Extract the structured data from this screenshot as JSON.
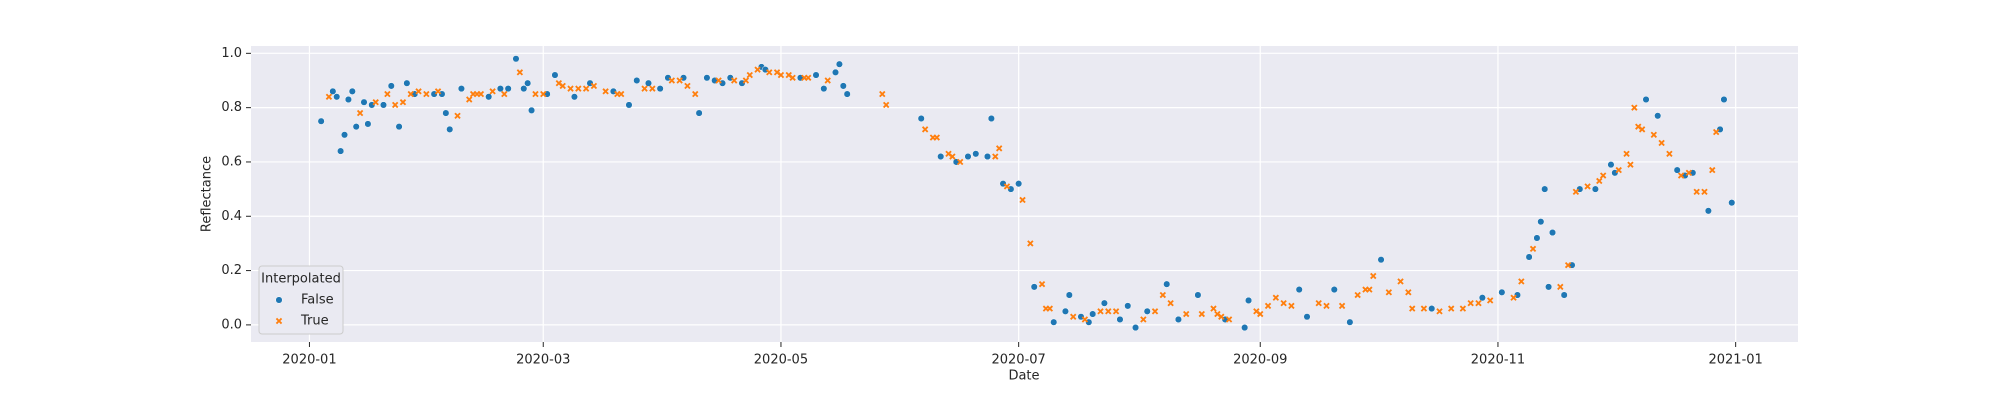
{
  "chart_data": {
    "type": "scatter",
    "x_label": "Date",
    "y_label": "Reflectance",
    "legend_title": "Interpolated",
    "legend_position": "lower left",
    "grid": true,
    "xlim": [
      "2019-12-17",
      "2021-01-17"
    ],
    "xticks": [
      {
        "value": "2020-01-01",
        "label": "2020-01"
      },
      {
        "value": "2020-03-01",
        "label": "2020-03"
      },
      {
        "value": "2020-05-01",
        "label": "2020-05"
      },
      {
        "value": "2020-07-01",
        "label": "2020-07"
      },
      {
        "value": "2020-09-01",
        "label": "2020-09"
      },
      {
        "value": "2020-11-01",
        "label": "2020-11"
      },
      {
        "value": "2021-01-01",
        "label": "2021-01"
      }
    ],
    "ylim": [
      -0.063,
      1.027
    ],
    "yticks": [
      {
        "value": 0,
        "label": "0.0"
      },
      {
        "value": 0.2,
        "label": "0.2"
      },
      {
        "value": 0.4,
        "label": "0.4"
      },
      {
        "value": 0.6,
        "label": "0.6"
      },
      {
        "value": 0.8,
        "label": "0.8"
      },
      {
        "value": 1,
        "label": "1.0"
      }
    ],
    "series": [
      {
        "name": "False",
        "color": "#1f77b4",
        "marker": "circle",
        "x": [
          "2020-01-04",
          "2020-01-07",
          "2020-01-08",
          "2020-01-09",
          "2020-01-10",
          "2020-01-11",
          "2020-01-12",
          "2020-01-13",
          "2020-01-15",
          "2020-01-16",
          "2020-01-17",
          "2020-01-20",
          "2020-01-22",
          "2020-01-24",
          "2020-01-26",
          "2020-01-28",
          "2020-02-02",
          "2020-02-04",
          "2020-02-05",
          "2020-02-06",
          "2020-02-09",
          "2020-02-16",
          "2020-02-19",
          "2020-02-21",
          "2020-02-23",
          "2020-02-25",
          "2020-02-26",
          "2020-02-27",
          "2020-03-02",
          "2020-03-04",
          "2020-03-09",
          "2020-03-13",
          "2020-03-19",
          "2020-03-23",
          "2020-03-25",
          "2020-03-28",
          "2020-03-31",
          "2020-04-02",
          "2020-04-06",
          "2020-04-10",
          "2020-04-12",
          "2020-04-14",
          "2020-04-16",
          "2020-04-18",
          "2020-04-21",
          "2020-04-26",
          "2020-04-27",
          "2020-05-06",
          "2020-05-10",
          "2020-05-12",
          "2020-05-15",
          "2020-05-16",
          "2020-05-17",
          "2020-05-18",
          "2020-06-06",
          "2020-06-11",
          "2020-06-15",
          "2020-06-18",
          "2020-06-20",
          "2020-06-23",
          "2020-06-24",
          "2020-06-27",
          "2020-06-29",
          "2020-07-01",
          "2020-07-05",
          "2020-07-10",
          "2020-07-13",
          "2020-07-14",
          "2020-07-17",
          "2020-07-19",
          "2020-07-20",
          "2020-07-23",
          "2020-07-27",
          "2020-07-29",
          "2020-07-31",
          "2020-08-03",
          "2020-08-08",
          "2020-08-11",
          "2020-08-16",
          "2020-08-23",
          "2020-08-28",
          "2020-08-29",
          "2020-09-11",
          "2020-09-13",
          "2020-09-20",
          "2020-09-24",
          "2020-10-02",
          "2020-10-15",
          "2020-10-28",
          "2020-11-02",
          "2020-11-06",
          "2020-11-09",
          "2020-11-11",
          "2020-11-12",
          "2020-11-13",
          "2020-11-14",
          "2020-11-15",
          "2020-11-18",
          "2020-11-20",
          "2020-11-22",
          "2020-11-26",
          "2020-11-30",
          "2020-12-01",
          "2020-12-09",
          "2020-12-12",
          "2020-12-17",
          "2020-12-19",
          "2020-12-21",
          "2020-12-25",
          "2020-12-28",
          "2020-12-29",
          "2020-12-31"
        ],
        "values": [
          0.75,
          0.86,
          0.84,
          0.64,
          0.7,
          0.83,
          0.86,
          0.73,
          0.82,
          0.74,
          0.81,
          0.81,
          0.88,
          0.73,
          0.89,
          0.85,
          0.85,
          0.85,
          0.78,
          0.72,
          0.87,
          0.84,
          0.87,
          0.87,
          0.98,
          0.87,
          0.89,
          0.79,
          0.85,
          0.92,
          0.84,
          0.89,
          0.86,
          0.81,
          0.9,
          0.89,
          0.87,
          0.91,
          0.91,
          0.78,
          0.91,
          0.9,
          0.89,
          0.91,
          0.89,
          0.95,
          0.94,
          0.91,
          0.92,
          0.87,
          0.93,
          0.96,
          0.88,
          0.85,
          0.76,
          0.62,
          0.6,
          0.62,
          0.63,
          0.62,
          0.76,
          0.52,
          0.5,
          0.52,
          0.14,
          0.01,
          0.05,
          0.11,
          0.03,
          0.01,
          0.04,
          0.08,
          0.02,
          0.07,
          -0.01,
          0.05,
          0.15,
          0.02,
          0.11,
          0.02,
          -0.01,
          0.09,
          0.13,
          0.03,
          0.13,
          0.01,
          0.24,
          0.06,
          0.1,
          0.12,
          0.11,
          0.25,
          0.32,
          0.38,
          0.5,
          0.14,
          0.34,
          0.11,
          0.22,
          0.5,
          0.5,
          0.59,
          0.56,
          0.83,
          0.77,
          0.57,
          0.55,
          0.56,
          0.42,
          0.72,
          0.83,
          0.45
        ]
      },
      {
        "name": "True",
        "color": "#ff7f0e",
        "marker": "x",
        "x": [
          "2020-01-06",
          "2020-01-14",
          "2020-01-18",
          "2020-01-21",
          "2020-01-23",
          "2020-01-25",
          "2020-01-27",
          "2020-01-29",
          "2020-01-31",
          "2020-02-03",
          "2020-02-08",
          "2020-02-11",
          "2020-02-12",
          "2020-02-13",
          "2020-02-14",
          "2020-02-17",
          "2020-02-20",
          "2020-02-24",
          "2020-02-28",
          "2020-03-01",
          "2020-03-05",
          "2020-03-06",
          "2020-03-08",
          "2020-03-10",
          "2020-03-12",
          "2020-03-14",
          "2020-03-17",
          "2020-03-20",
          "2020-03-21",
          "2020-03-27",
          "2020-03-29",
          "2020-04-03",
          "2020-04-05",
          "2020-04-07",
          "2020-04-09",
          "2020-04-15",
          "2020-04-19",
          "2020-04-22",
          "2020-04-23",
          "2020-04-25",
          "2020-04-28",
          "2020-04-30",
          "2020-05-01",
          "2020-05-03",
          "2020-05-04",
          "2020-05-07",
          "2020-05-08",
          "2020-05-13",
          "2020-05-27",
          "2020-05-28",
          "2020-06-07",
          "2020-06-09",
          "2020-06-10",
          "2020-06-13",
          "2020-06-14",
          "2020-06-16",
          "2020-06-25",
          "2020-06-26",
          "2020-06-28",
          "2020-07-02",
          "2020-07-04",
          "2020-07-07",
          "2020-07-08",
          "2020-07-09",
          "2020-07-15",
          "2020-07-18",
          "2020-07-22",
          "2020-07-24",
          "2020-07-26",
          "2020-08-02",
          "2020-08-05",
          "2020-08-07",
          "2020-08-09",
          "2020-08-13",
          "2020-08-17",
          "2020-08-20",
          "2020-08-21",
          "2020-08-22",
          "2020-08-24",
          "2020-08-31",
          "2020-09-01",
          "2020-09-03",
          "2020-09-05",
          "2020-09-07",
          "2020-09-09",
          "2020-09-16",
          "2020-09-18",
          "2020-09-22",
          "2020-09-26",
          "2020-09-28",
          "2020-09-29",
          "2020-09-30",
          "2020-10-04",
          "2020-10-07",
          "2020-10-09",
          "2020-10-10",
          "2020-10-13",
          "2020-10-17",
          "2020-10-20",
          "2020-10-23",
          "2020-10-25",
          "2020-10-27",
          "2020-10-30",
          "2020-11-05",
          "2020-11-07",
          "2020-11-10",
          "2020-11-17",
          "2020-11-19",
          "2020-11-21",
          "2020-11-24",
          "2020-11-27",
          "2020-11-28",
          "2020-12-02",
          "2020-12-04",
          "2020-12-05",
          "2020-12-06",
          "2020-12-07",
          "2020-12-08",
          "2020-12-11",
          "2020-12-13",
          "2020-12-15",
          "2020-12-18",
          "2020-12-20",
          "2020-12-22",
          "2020-12-24",
          "2020-12-26",
          "2020-12-27"
        ],
        "values": [
          0.84,
          0.78,
          0.82,
          0.85,
          0.81,
          0.82,
          0.85,
          0.86,
          0.85,
          0.86,
          0.77,
          0.83,
          0.85,
          0.85,
          0.85,
          0.86,
          0.85,
          0.93,
          0.85,
          0.85,
          0.89,
          0.88,
          0.87,
          0.87,
          0.87,
          0.88,
          0.86,
          0.85,
          0.85,
          0.87,
          0.87,
          0.9,
          0.9,
          0.88,
          0.85,
          0.9,
          0.9,
          0.9,
          0.92,
          0.94,
          0.93,
          0.93,
          0.92,
          0.92,
          0.91,
          0.91,
          0.91,
          0.9,
          0.85,
          0.81,
          0.72,
          0.69,
          0.69,
          0.63,
          0.62,
          0.6,
          0.62,
          0.65,
          0.51,
          0.46,
          0.3,
          0.15,
          0.06,
          0.06,
          0.03,
          0.02,
          0.05,
          0.05,
          0.05,
          0.02,
          0.05,
          0.11,
          0.08,
          0.04,
          0.04,
          0.06,
          0.04,
          0.03,
          0.02,
          0.05,
          0.04,
          0.07,
          0.1,
          0.08,
          0.07,
          0.08,
          0.07,
          0.07,
          0.11,
          0.13,
          0.13,
          0.18,
          0.12,
          0.16,
          0.12,
          0.06,
          0.06,
          0.05,
          0.06,
          0.06,
          0.08,
          0.08,
          0.09,
          0.1,
          0.16,
          0.28,
          0.14,
          0.22,
          0.49,
          0.51,
          0.53,
          0.55,
          0.57,
          0.63,
          0.59,
          0.8,
          0.73,
          0.72,
          0.7,
          0.67,
          0.63,
          0.55,
          0.56,
          0.49,
          0.49,
          0.57,
          0.71
        ]
      }
    ]
  }
}
